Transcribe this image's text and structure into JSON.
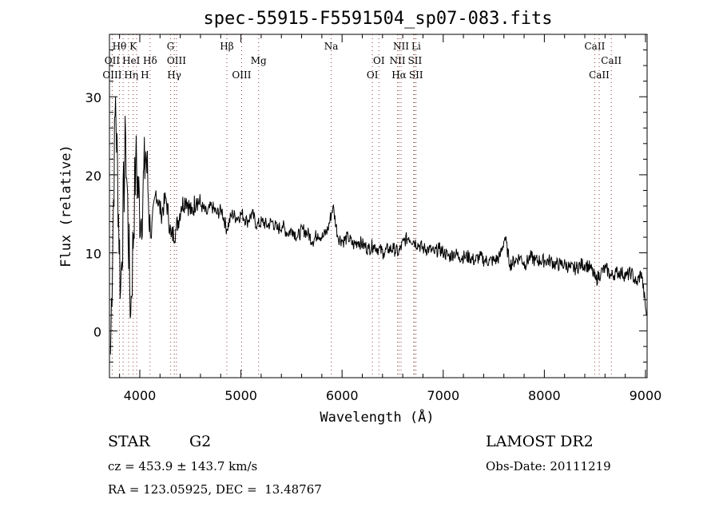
{
  "chart_data": {
    "type": "line",
    "title": "spec-55915-F5591504_sp07-083.fits",
    "xlabel": "Wavelength (Å)",
    "ylabel": "Flux (relative)",
    "xlim": [
      3700,
      9016
    ],
    "ylim": [
      -6,
      38
    ],
    "x_ticks": [
      4000,
      5000,
      6000,
      7000,
      8000,
      9000
    ],
    "y_ticks": [
      0,
      10,
      20,
      30
    ],
    "grid": false,
    "series": [
      {
        "name": "flux",
        "x_start": 3710,
        "x_step": 50,
        "values": [
          -3,
          30,
          5,
          25,
          2,
          22,
          14,
          23,
          12,
          18,
          15,
          17,
          12,
          13,
          16,
          17,
          15,
          17,
          16,
          15,
          16,
          15,
          15.5,
          13,
          15,
          14.5,
          15,
          14,
          15,
          13.5,
          14,
          13.5,
          14,
          13,
          13.5,
          12.5,
          13,
          12,
          13,
          12.5,
          11.5,
          12.5,
          12,
          13,
          16,
          12,
          11.5,
          12,
          11,
          11.5,
          11,
          10.5,
          11,
          10.5,
          10,
          10.5,
          10.5,
          10,
          11.5,
          12,
          11.5,
          11,
          10.5,
          10.5,
          10,
          10.5,
          10,
          9.5,
          10,
          9.5,
          9.5,
          9.5,
          9,
          9.5,
          9,
          9,
          9,
          9.5,
          12,
          8.5,
          9,
          9.5,
          8.5,
          9.5,
          9,
          9,
          9,
          9,
          8.5,
          8.5,
          8.5,
          8,
          8,
          8.5,
          8.5,
          8,
          6.5,
          7.5,
          8,
          7,
          7.5,
          7.5,
          7,
          7.5,
          6,
          7.5,
          2
        ]
      }
    ],
    "line_markers": [
      {
        "label": "Hθ",
        "wave": 3798,
        "row": 0
      },
      {
        "label": "K",
        "wave": 3934,
        "row": 0
      },
      {
        "label": "G",
        "wave": 4305,
        "row": 0
      },
      {
        "label": "Hβ",
        "wave": 4861,
        "row": 0
      },
      {
        "label": "Na",
        "wave": 5893,
        "row": 0
      },
      {
        "label": "NII",
        "wave": 6583,
        "row": 0
      },
      {
        "label": "Li",
        "wave": 6708,
        "row": 0
      },
      {
        "label": "CaII",
        "wave": 8498,
        "row": 0
      },
      {
        "label": "OII",
        "wave": 3727,
        "row": 1
      },
      {
        "label": "HeI",
        "wave": 3889,
        "row": 1
      },
      {
        "label": "Hδ",
        "wave": 4102,
        "row": 1
      },
      {
        "label": "OIII",
        "wave": 4363,
        "row": 1
      },
      {
        "label": "Mg",
        "wave": 5175,
        "row": 1
      },
      {
        "label": "OI",
        "wave": 6364,
        "row": 1
      },
      {
        "label": "NII",
        "wave": 6548,
        "row": 1
      },
      {
        "label": "SII",
        "wave": 6716,
        "row": 1
      },
      {
        "label": "CaII",
        "wave": 8662,
        "row": 1
      },
      {
        "label": "OIII",
        "wave": 3727,
        "row": 2
      },
      {
        "label": "Hη",
        "wave": 3835,
        "row": 2
      },
      {
        "label": "H",
        "wave": 3969,
        "row": 2
      },
      {
        "label": "Hγ",
        "wave": 4341,
        "row": 2
      },
      {
        "label": "OIII",
        "wave": 5007,
        "row": 2
      },
      {
        "label": "OI",
        "wave": 6300,
        "row": 2
      },
      {
        "label": "Hα",
        "wave": 6563,
        "row": 2
      },
      {
        "label": "SII",
        "wave": 6731,
        "row": 2
      },
      {
        "label": "CaII",
        "wave": 8542,
        "row": 2
      }
    ]
  },
  "info": {
    "object_class": "STAR",
    "subclass": "G2",
    "survey": "LAMOST DR2",
    "redshift": "cz = 453.9 ± 143.7 km/s",
    "obs_date": "Obs-Date: 20111219",
    "coords": "RA = 123.05925, DEC =  13.48767"
  },
  "colors": {
    "marker": "#8b3a3a",
    "axis": "#000000"
  }
}
